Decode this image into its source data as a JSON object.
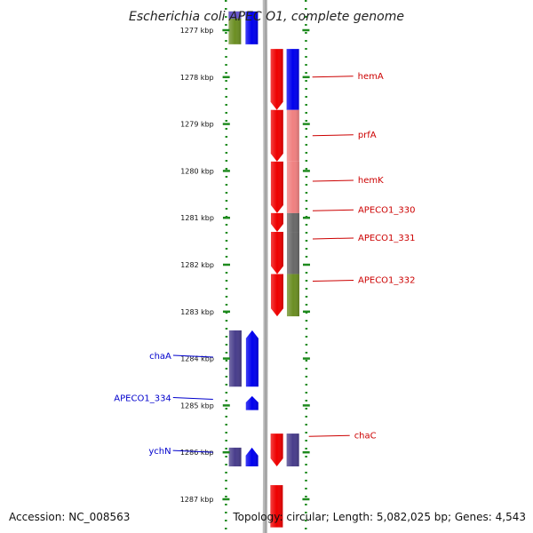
{
  "title": "Escherichia coli APEC O1, complete genome",
  "footer": {
    "accession": "Accession: NC_008563",
    "summary": "Topology: circular; Length: 5,082,025 bp; Genes: 4,543"
  },
  "colors": {
    "track_dots": "#1e8a1e",
    "backbone": "#888888",
    "forward_label": "#cc0000",
    "reverse_label": "#0000cc"
  },
  "chart_data": {
    "type": "genome-map",
    "ticks": [
      {
        "kbp": 1277,
        "label": "1277 kbp"
      },
      {
        "kbp": 1278,
        "label": "1278 kbp"
      },
      {
        "kbp": 1279,
        "label": "1279 kbp"
      },
      {
        "kbp": 1280,
        "label": "1280 kbp"
      },
      {
        "kbp": 1281,
        "label": "1281 kbp"
      },
      {
        "kbp": 1282,
        "label": "1282 kbp"
      },
      {
        "kbp": 1283,
        "label": "1283 kbp"
      },
      {
        "kbp": 1284,
        "label": "1284 kbp"
      },
      {
        "kbp": 1285,
        "label": "1285 kbp"
      },
      {
        "kbp": 1286,
        "label": "1286 kbp"
      },
      {
        "kbp": 1287,
        "label": "1287 kbp"
      }
    ],
    "labels": [
      {
        "text": "hemA",
        "kbp": 1278.0,
        "strand": "forward"
      },
      {
        "text": "prfA",
        "kbp": 1279.25,
        "strand": "forward"
      },
      {
        "text": "hemK",
        "kbp": 1280.22,
        "strand": "forward"
      },
      {
        "text": "APECO1_330",
        "kbp": 1280.85,
        "strand": "forward"
      },
      {
        "text": "APECO1_331",
        "kbp": 1281.45,
        "strand": "forward"
      },
      {
        "text": "APECO1_332",
        "kbp": 1282.35,
        "strand": "forward"
      },
      {
        "text": "chaA",
        "kbp": 1283.95,
        "strand": "reverse"
      },
      {
        "text": "APECO1_334",
        "kbp": 1284.85,
        "strand": "reverse"
      },
      {
        "text": "chaC",
        "kbp": 1285.66,
        "strand": "forward"
      },
      {
        "text": "ychN",
        "kbp": 1285.98,
        "strand": "reverse"
      }
    ],
    "genes": [
      {
        "start": 1276.6,
        "end": 1277.3,
        "strand": "reverse",
        "cds": "#0000ee",
        "outer": "#6b8e23",
        "outer_top": "#6a5acd",
        "arrow": false
      },
      {
        "start": 1277.4,
        "end": 1278.7,
        "strand": "forward",
        "cds": "#ee0000",
        "outer": "#0000ee",
        "arrow": true
      },
      {
        "start": 1278.7,
        "end": 1279.8,
        "strand": "forward",
        "cds": "#ee0000",
        "outer": "#f08080",
        "arrow": true
      },
      {
        "start": 1279.8,
        "end": 1280.9,
        "strand": "forward",
        "cds": "#ee0000",
        "outer": "#f08080",
        "arrow": true
      },
      {
        "start": 1280.9,
        "end": 1281.3,
        "strand": "forward",
        "cds": "#ee0000",
        "outer": "#696969",
        "arrow": true
      },
      {
        "start": 1281.3,
        "end": 1282.2,
        "strand": "forward",
        "cds": "#ee0000",
        "outer": "#696969",
        "arrow": true
      },
      {
        "start": 1282.2,
        "end": 1283.1,
        "strand": "forward",
        "cds": "#ee0000",
        "outer": "#6b8e23",
        "arrow": true
      },
      {
        "start": 1283.4,
        "end": 1284.6,
        "strand": "reverse",
        "cds": "#0000ee",
        "outer": "#483d8b",
        "arrow": true
      },
      {
        "start": 1284.8,
        "end": 1285.1,
        "strand": "reverse",
        "cds": "#0000ee",
        "outer": null,
        "arrow": true
      },
      {
        "start": 1285.6,
        "end": 1286.3,
        "strand": "forward",
        "cds": "#ee0000",
        "outer": "#483d8b",
        "arrow": true
      },
      {
        "start": 1285.9,
        "end": 1286.3,
        "strand": "reverse",
        "cds": "#0000ee",
        "outer": "#483d8b",
        "arrow": true
      },
      {
        "start": 1286.7,
        "end": 1287.6,
        "strand": "forward",
        "cds": "#ee0000",
        "outer": null,
        "arrow": false
      }
    ]
  }
}
